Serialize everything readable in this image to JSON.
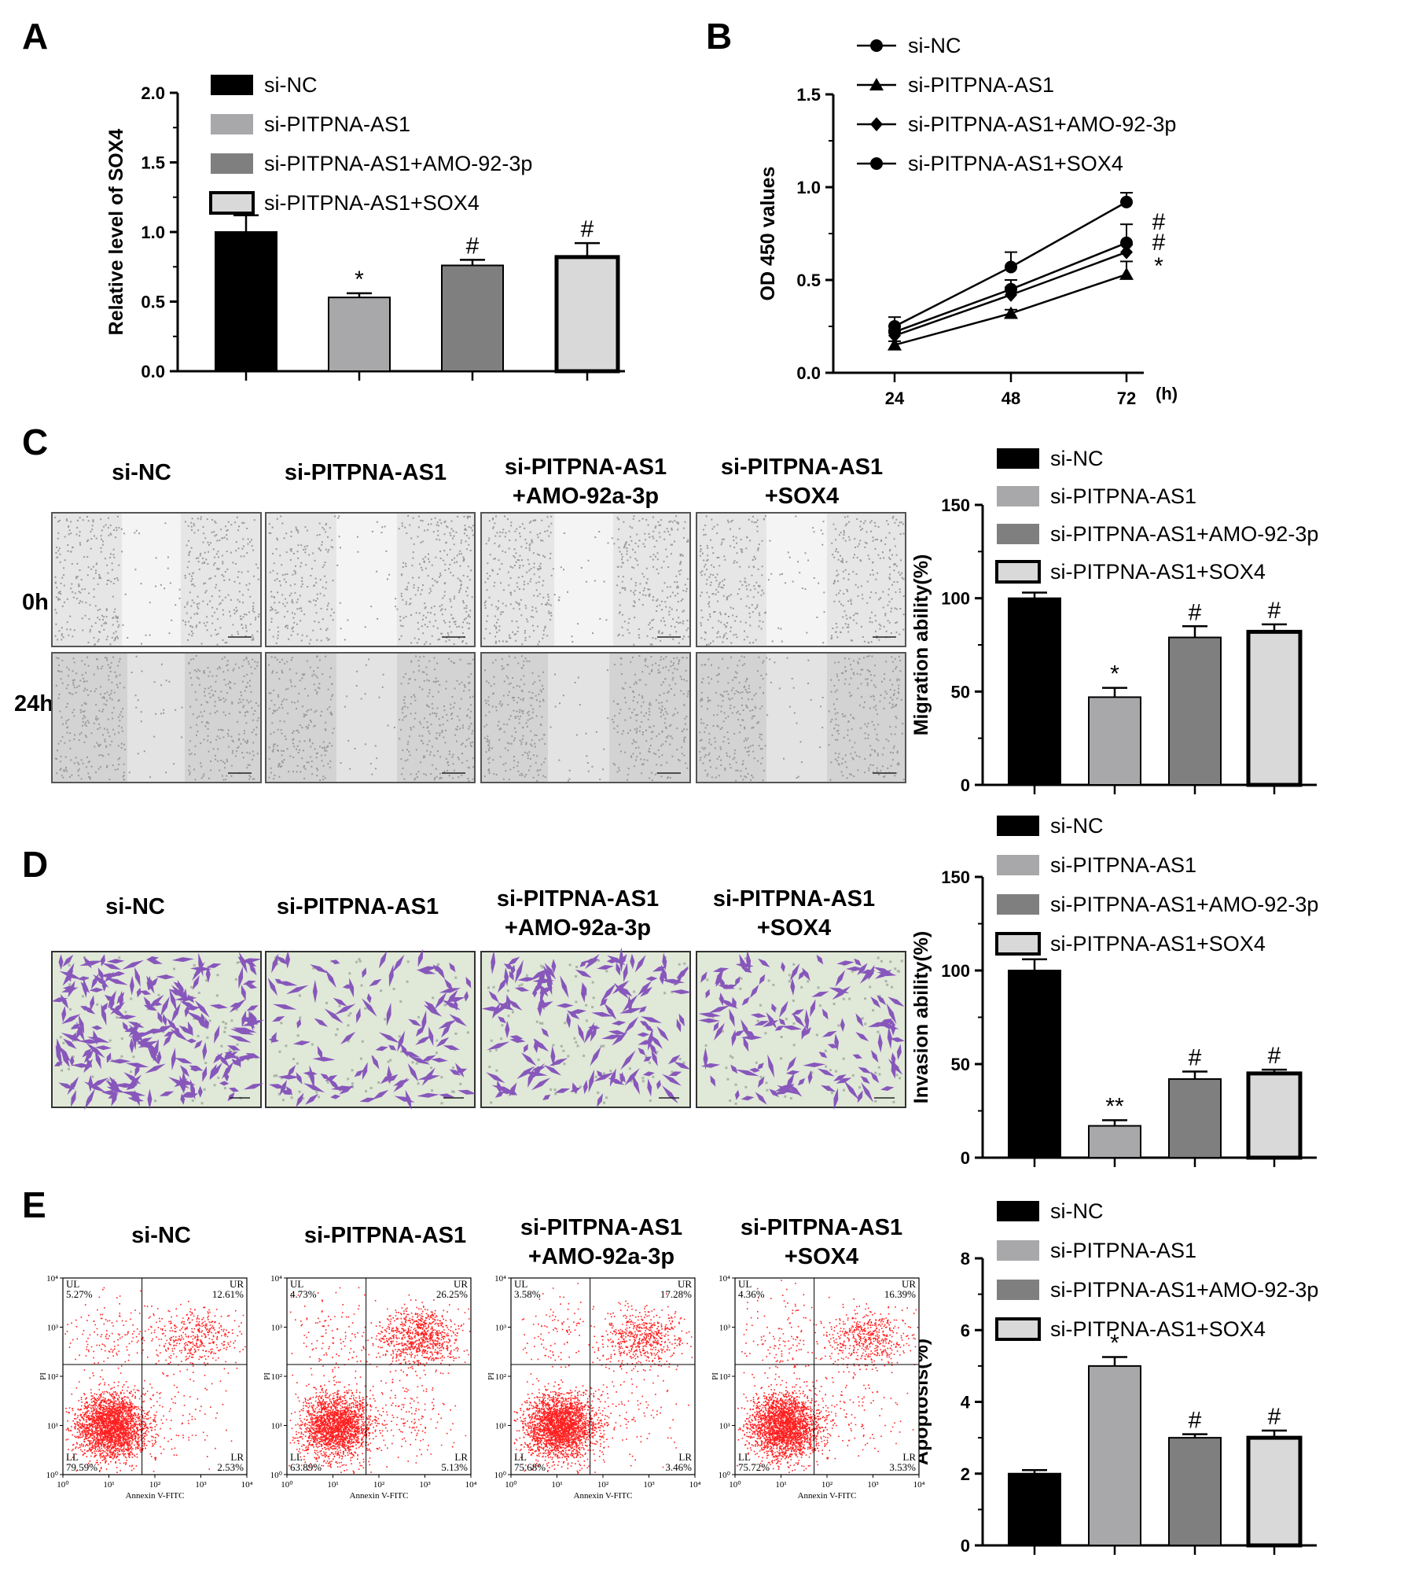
{
  "panels": {
    "A": {
      "letter": "A",
      "legend": [
        "si-NC",
        "si-PITPNA-AS1",
        "si-PITPNA-AS1+AMO-92-3p",
        "si-PITPNA-AS1+SOX4"
      ]
    },
    "B": {
      "letter": "B",
      "legend": [
        "si-NC",
        "si-PITPNA-AS1",
        "si-PITPNA-AS1+AMO-92-3p",
        "si-PITPNA-AS1+SOX4"
      ],
      "unit": "(h)"
    },
    "C": {
      "letter": "C",
      "columns": [
        "si-NC",
        "si-PITPNA-AS1",
        "si-PITPNA-AS1\n+AMO-92a-3p",
        "si-PITPNA-AS1\n+SOX4"
      ],
      "rows": [
        "0h",
        "24h"
      ],
      "legend": [
        "si-NC",
        "si-PITPNA-AS1",
        "si-PITPNA-AS1+AMO-92-3p",
        "si-PITPNA-AS1+SOX4"
      ]
    },
    "D": {
      "letter": "D",
      "columns": [
        "si-NC",
        "si-PITPNA-AS1",
        "si-PITPNA-AS1\n+AMO-92a-3p",
        "si-PITPNA-AS1\n+SOX4"
      ],
      "legend": [
        "si-NC",
        "si-PITPNA-AS1",
        "si-PITPNA-AS1+AMO-92-3p",
        "si-PITPNA-AS1+SOX4"
      ]
    },
    "E": {
      "letter": "E",
      "columns": [
        "si-NC",
        "si-PITPNA-AS1",
        "si-PITPNA-AS1\n+AMO-92a-3p",
        "si-PITPNA-AS1\n+SOX4"
      ],
      "legend": [
        "si-NC",
        "si-PITPNA-AS1",
        "si-PITPNA-AS1+AMO-92-3p",
        "si-PITPNA-AS1+SOX4"
      ],
      "facs_xlabel": "Annexin V-FITC",
      "facs_ylabel": "PI",
      "facs_ticks": [
        "10⁰",
        "10¹",
        "10²",
        "10³",
        "10⁴"
      ],
      "quadrants": [
        {
          "UL": "5.27%",
          "UR": "12.61%",
          "LL": "79.59%",
          "LR": "2.53%"
        },
        {
          "UL": "4.73%",
          "UR": "26.25%",
          "LL": "63.89%",
          "LR": "5.13%"
        },
        {
          "UL": "3.58%",
          "UR": "17.28%",
          "LL": "75.68%",
          "LR": "3.46%"
        },
        {
          "UL": "4.36%",
          "UR": "16.39%",
          "LL": "75.72%",
          "LR": "3.53%"
        }
      ],
      "quad_labels": [
        "UL",
        "UR",
        "LL",
        "LR"
      ]
    }
  },
  "colors": {
    "bar_fill": [
      "#000000",
      "#a8a8aa",
      "#7f7f7f",
      "#d9d9d9"
    ],
    "dot": "#ff2020",
    "stain": "#7d47b8",
    "well_bg": "#e0e8d8"
  },
  "chart_data": [
    {
      "id": "A",
      "type": "bar",
      "categories": [
        "si-NC",
        "si-PITPNA-AS1",
        "si-PITPNA-AS1+AMO-92-3p",
        "si-PITPNA-AS1+SOX4"
      ],
      "values": [
        1.0,
        0.53,
        0.76,
        0.82
      ],
      "errors": [
        0.12,
        0.03,
        0.04,
        0.1
      ],
      "significance": [
        "",
        "*",
        "#",
        "#"
      ],
      "ylabel": "Relative level of SOX4",
      "ylim": [
        0,
        2.0
      ],
      "yticks": [
        "0.0",
        "0.5",
        "1.0",
        "1.5",
        "2.0"
      ]
    },
    {
      "id": "B",
      "type": "line",
      "x": [
        24,
        48,
        72
      ],
      "xticks": [
        "24",
        "48",
        "72"
      ],
      "series": [
        {
          "name": "si-NC",
          "values": [
            0.25,
            0.57,
            0.92
          ],
          "errors": [
            0.05,
            0.08,
            0.05
          ],
          "marker": "circle"
        },
        {
          "name": "si-PITPNA-AS1",
          "values": [
            0.15,
            0.32,
            0.53
          ],
          "errors": [
            0.02,
            0.02,
            0.07
          ],
          "marker": "triangle"
        },
        {
          "name": "si-PITPNA-AS1+AMO-92-3p",
          "values": [
            0.2,
            0.42,
            0.65
          ],
          "errors": [
            0.03,
            0.04,
            0.04
          ],
          "marker": "diamond"
        },
        {
          "name": "si-PITPNA-AS1+SOX4",
          "values": [
            0.22,
            0.45,
            0.7
          ],
          "errors": [
            0.03,
            0.05,
            0.1
          ],
          "marker": "circle"
        }
      ],
      "significance_at_end": [
        "#",
        "#",
        "*"
      ],
      "ylabel": "OD 450 values",
      "ylim": [
        0,
        1.5
      ],
      "yticks": [
        "0.0",
        "0.5",
        "1.0",
        "1.5"
      ]
    },
    {
      "id": "C",
      "type": "bar",
      "categories": [
        "si-NC",
        "si-PITPNA-AS1",
        "si-PITPNA-AS1+AMO-92-3p",
        "si-PITPNA-AS1+SOX4"
      ],
      "values": [
        100,
        47,
        79,
        82
      ],
      "errors": [
        3,
        5,
        6,
        4
      ],
      "significance": [
        "",
        "*",
        "#",
        "#"
      ],
      "ylabel": "Migration ability(%)",
      "ylim": [
        0,
        150
      ],
      "yticks": [
        "0",
        "50",
        "100",
        "150"
      ]
    },
    {
      "id": "D",
      "type": "bar",
      "categories": [
        "si-NC",
        "si-PITPNA-AS1",
        "si-PITPNA-AS1+AMO-92-3p",
        "si-PITPNA-AS1+SOX4"
      ],
      "values": [
        100,
        17,
        42,
        45
      ],
      "errors": [
        6,
        3,
        4,
        2
      ],
      "significance": [
        "",
        "**",
        "#",
        "#"
      ],
      "ylabel": "Invasion ability(%)",
      "ylim": [
        0,
        150
      ],
      "yticks": [
        "0",
        "50",
        "100",
        "150"
      ]
    },
    {
      "id": "E",
      "type": "bar",
      "categories": [
        "si-NC",
        "si-PITPNA-AS1",
        "si-PITPNA-AS1+AMO-92-3p",
        "si-PITPNA-AS1+SOX4"
      ],
      "values": [
        2.0,
        5.0,
        3.0,
        3.0
      ],
      "errors": [
        0.1,
        0.25,
        0.1,
        0.2
      ],
      "significance": [
        "",
        "*",
        "#",
        "#"
      ],
      "ylabel": "Apoptosis(%)",
      "ylim": [
        0,
        8
      ],
      "yticks": [
        "0",
        "2",
        "4",
        "6",
        "8"
      ]
    }
  ]
}
